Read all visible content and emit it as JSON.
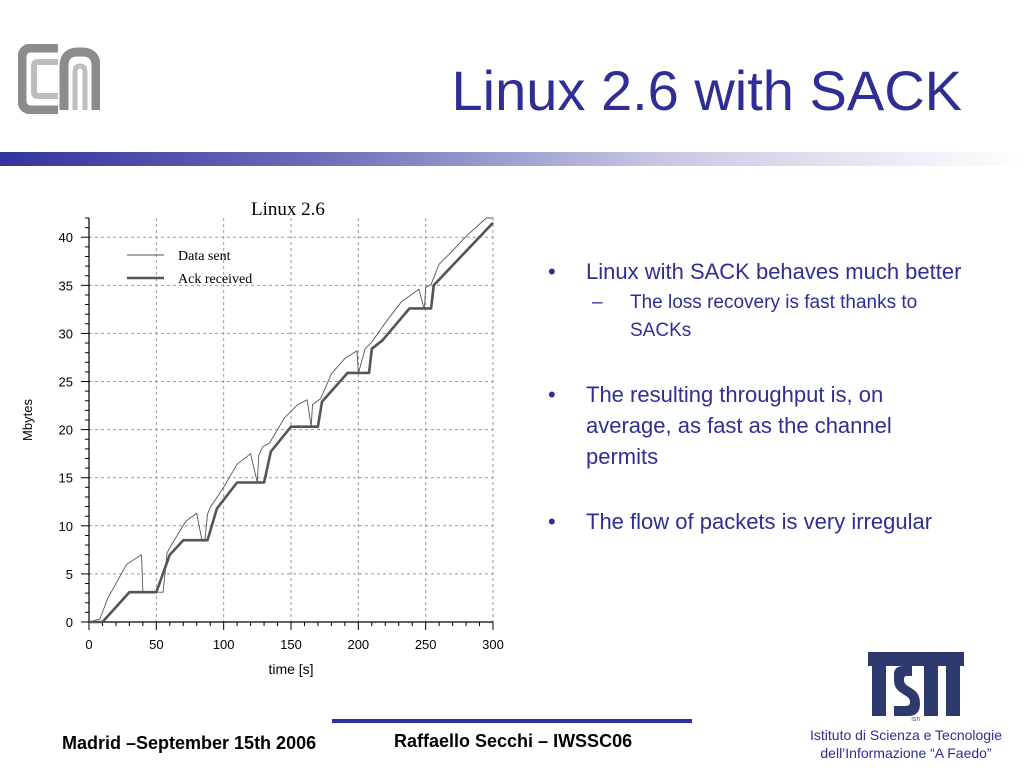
{
  "slide": {
    "title": "Linux 2.6 with SACK"
  },
  "chart_data": {
    "type": "line",
    "title": "Linux 2.6",
    "xlabel": "time [s]",
    "ylabel": "Mbytes",
    "xlim": [
      0,
      300
    ],
    "ylim": [
      0,
      42
    ],
    "xticks": [
      0,
      50,
      100,
      150,
      200,
      250,
      300
    ],
    "yticks": [
      0,
      5,
      10,
      15,
      20,
      25,
      30,
      35,
      40
    ],
    "grid": true,
    "legend_position": "top-left",
    "series": [
      {
        "name": "Data sent",
        "style": "thin",
        "color": "#555555",
        "x": [
          0,
          8,
          14,
          28,
          39,
          40,
          45,
          55,
          58,
          62,
          72,
          80,
          84,
          86,
          88,
          90,
          100,
          110,
          120,
          125,
          126,
          129,
          134,
          145,
          155,
          162,
          165,
          166,
          172,
          180,
          190,
          199,
          200,
          205,
          210,
          220,
          232,
          245,
          249,
          250,
          254,
          260,
          270,
          280,
          295,
          300
        ],
        "y": [
          0,
          0.3,
          2.5,
          6.0,
          7.0,
          3.1,
          3.1,
          3.1,
          7.2,
          8.2,
          10.5,
          11.3,
          8.4,
          8.4,
          11.2,
          11.9,
          14.0,
          16.4,
          17.5,
          14.5,
          17.3,
          18.2,
          18.6,
          21.2,
          22.6,
          23.1,
          20.3,
          22.6,
          23.2,
          25.8,
          27.4,
          28.2,
          25.8,
          28.4,
          29.1,
          31.1,
          33.3,
          34.6,
          32.5,
          34.8,
          35.1,
          37.2,
          38.6,
          40.1,
          42.0,
          42.0
        ]
      },
      {
        "name": "Ack received",
        "style": "thick",
        "color": "#555555",
        "x": [
          0,
          10,
          30,
          50,
          60,
          70,
          88,
          95,
          110,
          130,
          135,
          150,
          170,
          173,
          192,
          208,
          210,
          218,
          238,
          254,
          256,
          300
        ],
        "y": [
          0,
          0,
          3.1,
          3.1,
          7.0,
          8.5,
          8.5,
          11.8,
          14.5,
          14.5,
          17.7,
          20.3,
          20.3,
          22.9,
          25.9,
          25.9,
          28.4,
          29.3,
          32.6,
          32.6,
          35.0,
          41.5
        ]
      }
    ]
  },
  "bullets": [
    {
      "mark": "•",
      "text": "Linux with SACK behaves much better",
      "sub": [
        {
          "mark": "–",
          "text": "The loss recovery is fast thanks to SACKs"
        }
      ]
    },
    {
      "mark": "•",
      "text": "The resulting throughput is, on average, as fast as the channel permits"
    },
    {
      "mark": "•",
      "text": "The flow of packets is very irregular"
    }
  ],
  "footer": {
    "left": "Madrid –September 15th 2006",
    "center": "Raffaello Secchi – IWSSC06",
    "institute_line1": "Istituto di Scienza e Tecnologie",
    "institute_line2": "dell’Informazione “A Faedo”"
  },
  "logos": {
    "top_left": "cnr-logo",
    "bottom_right": "isti-logo",
    "bottom_right_text": "ISTI"
  },
  "colors": {
    "title": "#2e2e94",
    "accent": "#3333a0",
    "chart_line": "#555555"
  }
}
